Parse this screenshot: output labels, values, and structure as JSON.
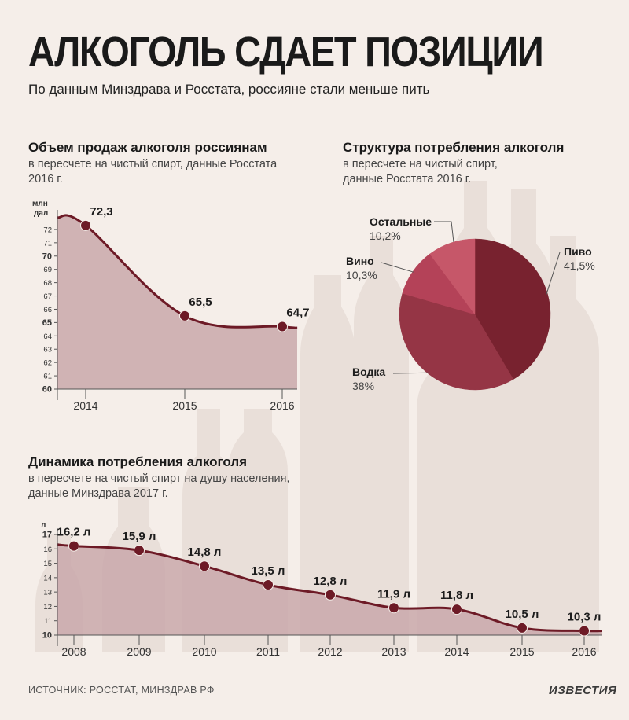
{
  "header": {
    "title": "АЛКОГОЛЬ СДАЕТ ПОЗИЦИИ",
    "subtitle": "По данным Минздрава и Росстата, россияне стали меньше пить"
  },
  "sales_section": {
    "title": "Объем продаж алкоголя россиянам",
    "subtitle_line1": "в пересчете на чистый спирт,  данные Росстата",
    "subtitle_line2": "2016 г."
  },
  "structure_section": {
    "title": "Структура потребления алкоголя",
    "subtitle_line1": "в пересчете на чистый спирт,",
    "subtitle_line2": "данные Росстата 2016 г."
  },
  "dynamics_section": {
    "title": "Динамика потребления алкоголя",
    "subtitle_line1": "в пересчете на чистый спирт на душу населения,",
    "subtitle_line2": "данные Минздрава 2017 г."
  },
  "footer": {
    "source": "ИСТОЧНИК: РОССТАТ, МИНЗДРАВ РФ",
    "brand": "ИЗВЕСТИЯ"
  },
  "colors": {
    "line": "#6d1a26",
    "area": "#c9a8aa",
    "dot": "#6d1a26",
    "pie_beer": "#78222f",
    "pie_vodka": "#953545",
    "pie_wine": "#b44258",
    "pie_other": "#c65769"
  },
  "chart_data": [
    {
      "type": "area",
      "title": "Объем продаж алкоголя россиянам",
      "ylabel_line1": "млн",
      "ylabel_line2": "дал",
      "x": [
        "2014",
        "2015",
        "2016"
      ],
      "series": [
        {
          "values": [
            72.3,
            65.5,
            64.7
          ]
        }
      ],
      "data_labels": [
        "72,3",
        "65,5",
        "64,7"
      ],
      "ylim": [
        60,
        73
      ],
      "yticks": [
        "60",
        "61",
        "62",
        "63",
        "64",
        "65",
        "66",
        "67",
        "68",
        "69",
        "70",
        "71",
        "72"
      ],
      "grid": false
    },
    {
      "type": "pie",
      "title": "Структура потребления алкоголя",
      "slices": [
        {
          "label": "Пиво",
          "value": 41.5,
          "value_label": "41,5%"
        },
        {
          "label": "Водка",
          "value": 38,
          "value_label": "38%"
        },
        {
          "label": "Вино",
          "value": 10.3,
          "value_label": "10,3%"
        },
        {
          "label": "Остальные",
          "value": 10.2,
          "value_label": "10,2%"
        }
      ]
    },
    {
      "type": "area",
      "title": "Динамика потребления алкоголя",
      "ylabel": "л",
      "x": [
        "2008",
        "2009",
        "2010",
        "2011",
        "2012",
        "2013",
        "2014",
        "2015",
        "2016"
      ],
      "series": [
        {
          "values": [
            16.2,
            15.9,
            14.8,
            13.5,
            12.8,
            11.9,
            11.8,
            10.5,
            10.3
          ]
        }
      ],
      "data_labels": [
        "16,2 л",
        "15,9 л",
        "14,8 л",
        "13,5 л",
        "12,8 л",
        "11,9 л",
        "11,8 л",
        "10,5 л",
        "10,3 л"
      ],
      "ylim": [
        10,
        17
      ],
      "yticks": [
        "10",
        "11",
        "12",
        "13",
        "14",
        "15",
        "16",
        "17"
      ],
      "grid": false
    }
  ]
}
